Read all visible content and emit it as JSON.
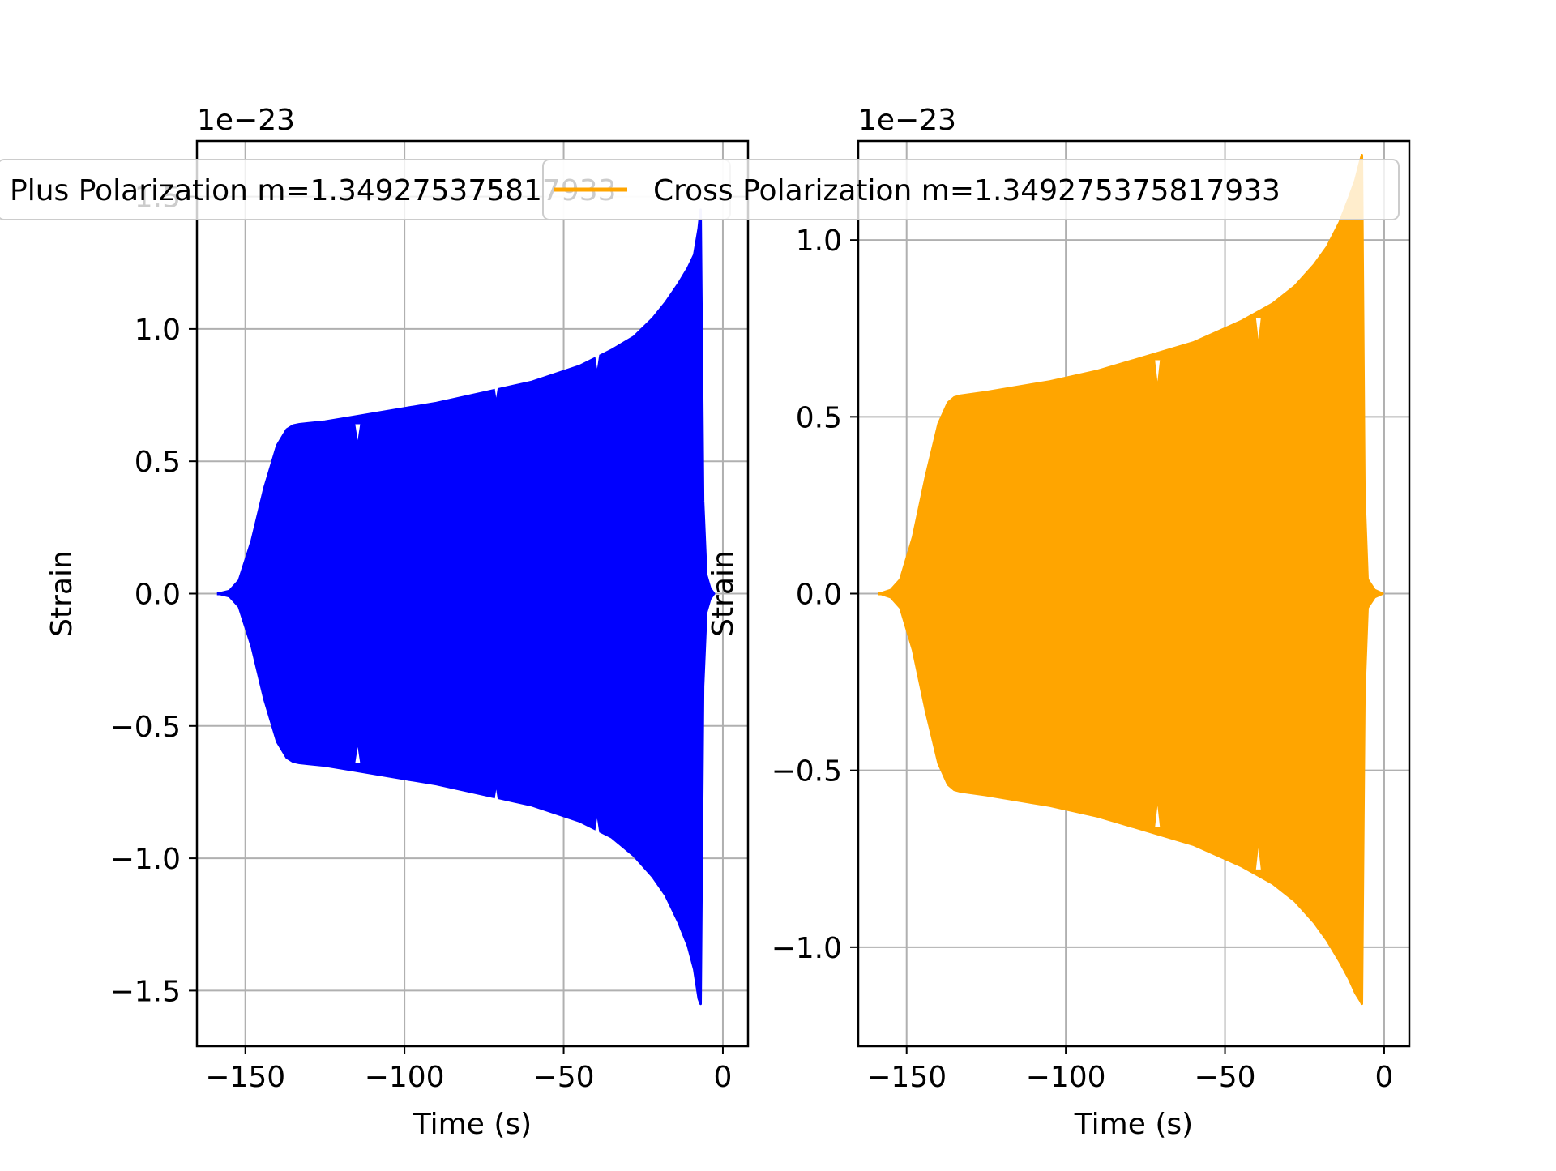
{
  "figure": {
    "colors": {
      "blue": "#0000ff",
      "orange": "#ffa500",
      "grid": "#b0b0b0",
      "legend_edge": "#cccccc"
    }
  },
  "chart_data": [
    {
      "type": "area",
      "xlabel": "Time (s)",
      "ylabel": "Strain",
      "offset_text": "1e−23",
      "x_ticks": [
        -150,
        -100,
        -50,
        0
      ],
      "x_tick_labels": [
        "−150",
        "−100",
        "−50",
        "0"
      ],
      "y_ticks": [
        -1.5,
        -1.0,
        -0.5,
        0.0,
        0.5,
        1.0,
        1.5
      ],
      "y_tick_labels": [
        "−1.5",
        "−1.0",
        "−0.5",
        "0.0",
        "0.5",
        "1.0",
        "1.5"
      ],
      "xlim": [
        -165.2,
        7.9
      ],
      "ylim": [
        -1.71,
        1.71
      ],
      "grid": true,
      "legend": "top-center",
      "series": [
        {
          "name": "Plus Polarization m=1.349275375817933",
          "color": "#0000ff",
          "envelope": {
            "x": [
              -158.4,
              -155,
              -152,
              -148,
              -144,
              -140,
              -137,
              -135,
              -133,
              -125,
              -115,
              -105,
              -90,
              -75,
              -60,
              -45,
              -35,
              -28,
              -22,
              -18,
              -14,
              -11,
              -9,
              -7.6,
              -7.0,
              -6.2,
              -5.2,
              -4.0,
              -2.8
            ],
            "upper": [
              0.0,
              0.01,
              0.05,
              0.2,
              0.4,
              0.56,
              0.62,
              0.635,
              0.64,
              0.65,
              0.67,
              0.69,
              0.72,
              0.76,
              0.8,
              0.86,
              0.92,
              0.97,
              1.04,
              1.1,
              1.17,
              1.23,
              1.28,
              1.38,
              1.45,
              0.35,
              0.07,
              0.02,
              0.0
            ],
            "lower": [
              0.0,
              -0.01,
              -0.05,
              -0.2,
              -0.4,
              -0.56,
              -0.62,
              -0.635,
              -0.64,
              -0.65,
              -0.67,
              -0.69,
              -0.72,
              -0.76,
              -0.8,
              -0.86,
              -0.92,
              -0.99,
              -1.07,
              -1.14,
              -1.24,
              -1.33,
              -1.42,
              -1.53,
              -1.55,
              -0.35,
              -0.07,
              -0.02,
              0.0
            ]
          },
          "glitches": [
            {
              "x": -114.7,
              "upper": 0.58,
              "lower": -0.58
            },
            {
              "x": -71.2,
              "upper": 0.74,
              "lower": -0.74
            },
            {
              "x": -39.5,
              "upper": 0.85,
              "lower": -0.85
            }
          ]
        }
      ]
    },
    {
      "type": "area",
      "xlabel": "Time (s)",
      "ylabel": "Strain",
      "offset_text": "1e−23",
      "x_ticks": [
        -150,
        -100,
        -50,
        0
      ],
      "x_tick_labels": [
        "−150",
        "−100",
        "−50",
        "0"
      ],
      "y_ticks": [
        -1.0,
        -0.5,
        0.0,
        0.5,
        1.0
      ],
      "y_tick_labels": [
        "−1.0",
        "−0.5",
        "0.0",
        "0.5",
        "1.0"
      ],
      "xlim": [
        -165.2,
        7.9
      ],
      "ylim": [
        -1.28,
        1.28
      ],
      "grid": true,
      "legend": "top-center",
      "series": [
        {
          "name": "Cross Polarization m=1.349275375817933",
          "color": "#ffa500",
          "envelope": {
            "x": [
              -158.4,
              -155,
              -152,
              -148,
              -144,
              -140,
              -137,
              -135,
              -133,
              -125,
              -115,
              -105,
              -90,
              -75,
              -60,
              -45,
              -35,
              -28,
              -22,
              -18,
              -14,
              -11,
              -9,
              -7.6,
              -7.0,
              -6.2,
              -5.2,
              -3.0,
              -0.5
            ],
            "upper": [
              0.0,
              0.01,
              0.04,
              0.16,
              0.33,
              0.48,
              0.54,
              0.555,
              0.56,
              0.57,
              0.585,
              0.6,
              0.63,
              0.67,
              0.71,
              0.77,
              0.82,
              0.87,
              0.93,
              0.98,
              1.05,
              1.12,
              1.17,
              1.22,
              1.24,
              0.28,
              0.04,
              0.01,
              0.0
            ],
            "lower": [
              0.0,
              -0.01,
              -0.04,
              -0.16,
              -0.33,
              -0.48,
              -0.54,
              -0.555,
              -0.56,
              -0.57,
              -0.585,
              -0.6,
              -0.63,
              -0.67,
              -0.71,
              -0.77,
              -0.82,
              -0.87,
              -0.93,
              -0.98,
              -1.04,
              -1.09,
              -1.13,
              -1.15,
              -1.16,
              -0.28,
              -0.04,
              -0.01,
              0.0
            ]
          },
          "glitches": [
            {
              "x": -71.2,
              "upper": 0.6,
              "lower": -0.6
            },
            {
              "x": -39.5,
              "upper": 0.72,
              "lower": -0.72
            }
          ]
        }
      ]
    }
  ]
}
